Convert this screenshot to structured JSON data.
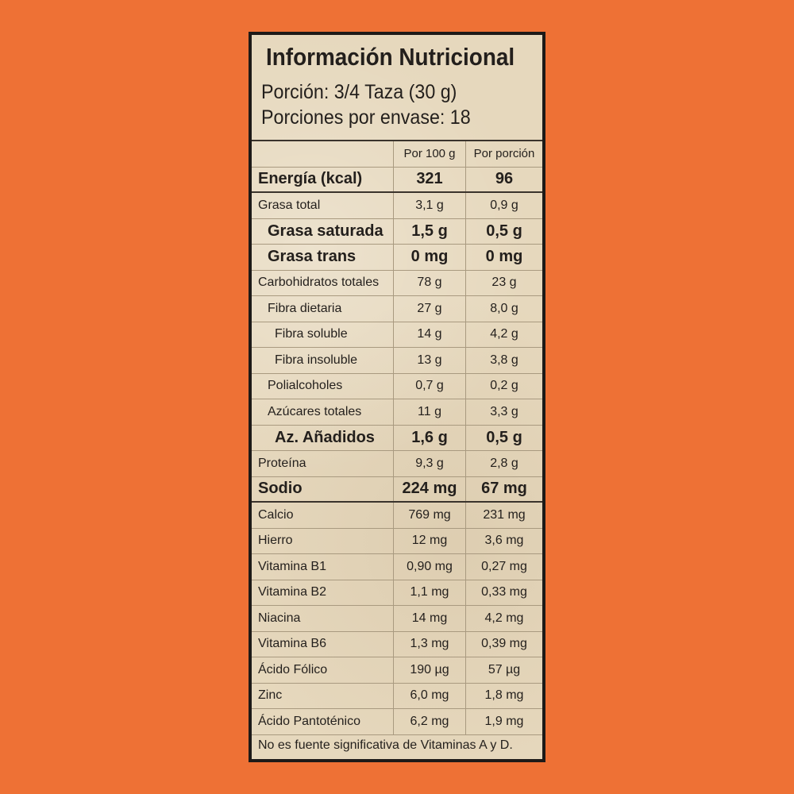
{
  "title": "Información Nutricional",
  "portion": "Porción: 3/4 Taza (30 g)",
  "servings": "Porciones por envase: 18",
  "columns": [
    "Por 100 g",
    "Por porción"
  ],
  "rows": [
    {
      "name": "Energía (kcal)",
      "per100": "321",
      "perServing": "96",
      "bold": true,
      "indent": 0
    },
    {
      "name": "Grasa total",
      "per100": "3,1 g",
      "perServing": "0,9 g",
      "indent": 0
    },
    {
      "name": "Grasa saturada",
      "per100": "1,5 g",
      "perServing": "0,5 g",
      "bold": true,
      "indent": 1
    },
    {
      "name": "Grasa trans",
      "per100": "0 mg",
      "perServing": "0 mg",
      "bold": true,
      "indent": 1
    },
    {
      "name": "Carbohidratos totales",
      "per100": "78 g",
      "perServing": "23 g",
      "indent": 0
    },
    {
      "name": "Fibra dietaria",
      "per100": "27 g",
      "perServing": "8,0 g",
      "indent": 1
    },
    {
      "name": "Fibra soluble",
      "per100": "14 g",
      "perServing": "4,2 g",
      "indent": 2
    },
    {
      "name": "Fibra insoluble",
      "per100": "13 g",
      "perServing": "3,8 g",
      "indent": 2
    },
    {
      "name": "Polialcoholes",
      "per100": "0,7 g",
      "perServing": "0,2 g",
      "indent": 1
    },
    {
      "name": "Azúcares totales",
      "per100": "11 g",
      "perServing": "3,3 g",
      "indent": 1
    },
    {
      "name": "Az. Añadidos",
      "per100": "1,6 g",
      "perServing": "0,5 g",
      "bold": true,
      "indent": 2
    },
    {
      "name": "Proteína",
      "per100": "9,3 g",
      "perServing": "2,8 g",
      "indent": 0
    },
    {
      "name": "Sodio",
      "per100": "224 mg",
      "perServing": "67 mg",
      "bold": true,
      "indent": 0
    },
    {
      "name": "Calcio",
      "per100": "769 mg",
      "perServing": "231 mg",
      "indent": 0
    },
    {
      "name": "Hierro",
      "per100": "12 mg",
      "perServing": "3,6 mg",
      "indent": 0
    },
    {
      "name": "Vitamina B1",
      "per100": "0,90 mg",
      "perServing": "0,27 mg",
      "indent": 0
    },
    {
      "name": "Vitamina B2",
      "per100": "1,1 mg",
      "perServing": "0,33 mg",
      "indent": 0
    },
    {
      "name": "Niacina",
      "per100": "14 mg",
      "perServing": "4,2 mg",
      "indent": 0
    },
    {
      "name": "Vitamina B6",
      "per100": "1,3 mg",
      "perServing": "0,39 mg",
      "indent": 0
    },
    {
      "name": "Ácido Fólico",
      "per100": "190 µg",
      "perServing": "57 µg",
      "indent": 0
    },
    {
      "name": "Zinc",
      "per100": "6,0 mg",
      "perServing": "1,8 mg",
      "indent": 0
    },
    {
      "name": "Ácido Pantoténico",
      "per100": "6,2 mg",
      "perServing": "1,9 mg",
      "indent": 0
    }
  ],
  "footnote": "No es fuente significativa de Vitaminas A y D.",
  "colors": {
    "background": "#ee7135",
    "panel": "#e6d8bd",
    "border": "#1d1a18"
  }
}
